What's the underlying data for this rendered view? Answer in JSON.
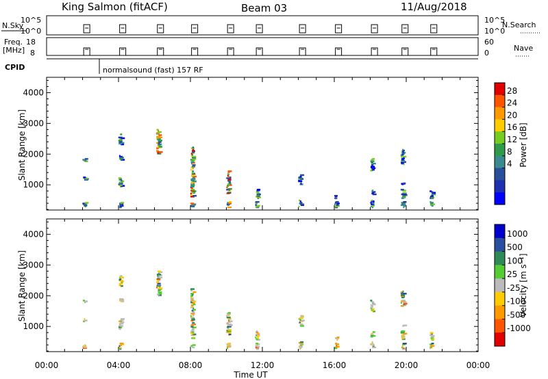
{
  "header": {
    "station": "King Salmon (fitACF)",
    "beam": "Beam 03",
    "date": "11/Aug/2018"
  },
  "strip_panels": {
    "nsky": {
      "label": "N.Sky",
      "left_ticks": [
        "10^5",
        "10^0"
      ],
      "right_ticks": [
        "10^5",
        "10^0"
      ],
      "right_label": "N.Search"
    },
    "freq": {
      "label_line1": "Freq.",
      "label_line2": "[MHz]",
      "left_ticks": [
        "18",
        "8"
      ],
      "right_ticks": [
        "60",
        "0"
      ],
      "right_label": "Nave"
    },
    "cpid": {
      "label": "CPID",
      "annotation": "normalsound (fast) 157 RF"
    }
  },
  "colorbars": {
    "power": {
      "label": "Power [dB]",
      "ticks": [
        "28",
        "24",
        "20",
        "16",
        "12",
        "8",
        "4"
      ],
      "colors": [
        "#e10000",
        "#ff5500",
        "#ff9900",
        "#ffcc00",
        "#77cc22",
        "#2e9b4a",
        "#3b8a8f",
        "#2a4f9a",
        "#1e2fb0",
        "#0000ff"
      ]
    },
    "velocity": {
      "label": "Velocity [m s⁻¹]",
      "ticks": [
        "1000",
        "500",
        "100",
        "25",
        "-25",
        "-100",
        "-500",
        "-1000"
      ],
      "colors": [
        "#0000cc",
        "#2a4fa0",
        "#2e8b57",
        "#55cc33",
        "#bbbbbb",
        "#ffcc00",
        "#ff9900",
        "#ff5500",
        "#e00000"
      ]
    }
  },
  "chart_data": [
    {
      "type": "heatmap",
      "title": "",
      "ylabel": "Slant Range [km]",
      "xlabel": "",
      "ylim": [
        180,
        4500
      ],
      "yticks": [
        "1000",
        "2000",
        "3000",
        "4000"
      ],
      "xlim": [
        0,
        24
      ],
      "xticks": [
        "00:00",
        "04:00",
        "08:00",
        "12:00",
        "16:00",
        "20:00",
        "00:00"
      ],
      "colorbar": "Power [dB]",
      "series": [
        {
          "time_h": 2.1,
          "range_km": [
            [
              280,
              420
            ],
            [
              1150,
              1250
            ],
            [
              1750,
              1850
            ]
          ],
          "level": "mixed"
        },
        {
          "time_h": 4.1,
          "range_km": [
            [
              250,
              450
            ],
            [
              900,
              1250
            ],
            [
              1800,
              1950
            ],
            [
              2300,
              2650
            ]
          ],
          "level": "mixed"
        },
        {
          "time_h": 6.2,
          "range_km": [
            [
              2000,
              2800
            ]
          ],
          "level": "strong"
        },
        {
          "time_h": 8.1,
          "range_km": [
            [
              250,
              400
            ],
            [
              600,
              1400
            ],
            [
              1400,
              2250
            ]
          ],
          "level": "strong"
        },
        {
          "time_h": 10.1,
          "range_km": [
            [
              250,
              450
            ],
            [
              700,
              1450
            ]
          ],
          "level": "strong"
        },
        {
          "time_h": 11.7,
          "range_km": [
            [
              250,
              450
            ],
            [
              550,
              850
            ]
          ],
          "level": "mixed"
        },
        {
          "time_h": 14.1,
          "range_km": [
            [
              250,
              500
            ],
            [
              1000,
              1350
            ]
          ],
          "level": "mixed"
        },
        {
          "time_h": 16.1,
          "range_km": [
            [
              250,
              450
            ],
            [
              550,
              650
            ]
          ],
          "level": "mixed"
        },
        {
          "time_h": 18.1,
          "range_km": [
            [
              250,
              500
            ],
            [
              650,
              850
            ],
            [
              1450,
              1850
            ]
          ],
          "level": "mixed"
        },
        {
          "time_h": 19.8,
          "range_km": [
            [
              250,
              450
            ],
            [
              550,
              850
            ],
            [
              1000,
              1050
            ],
            [
              1650,
              2150
            ]
          ],
          "level": "mixed"
        },
        {
          "time_h": 21.4,
          "range_km": [
            [
              250,
              450
            ],
            [
              550,
              800
            ]
          ],
          "level": "mixed"
        }
      ]
    },
    {
      "type": "heatmap",
      "title": "",
      "ylabel": "Slant Range [km]",
      "xlabel": "Time UT",
      "ylim": [
        180,
        4500
      ],
      "yticks": [
        "1000",
        "2000",
        "3000",
        "4000"
      ],
      "xlim": [
        0,
        24
      ],
      "xticks": [
        "00:00",
        "04:00",
        "08:00",
        "12:00",
        "16:00",
        "20:00",
        "00:00"
      ],
      "colorbar": "Velocity [m s⁻¹]",
      "series": [
        {
          "time_h": 2.1,
          "range_km": [
            [
              280,
              420
            ],
            [
              1150,
              1250
            ],
            [
              1750,
              1850
            ]
          ],
          "level": "mixed"
        },
        {
          "time_h": 4.1,
          "range_km": [
            [
              250,
              450
            ],
            [
              900,
              1250
            ],
            [
              1800,
              1950
            ],
            [
              2300,
              2650
            ]
          ],
          "level": "mixed"
        },
        {
          "time_h": 6.2,
          "range_km": [
            [
              2000,
              2800
            ]
          ],
          "level": "mixed"
        },
        {
          "time_h": 8.1,
          "range_km": [
            [
              250,
              400
            ],
            [
              600,
              1400
            ],
            [
              1400,
              2250
            ]
          ],
          "level": "mixed"
        },
        {
          "time_h": 10.1,
          "range_km": [
            [
              250,
              450
            ],
            [
              700,
              1450
            ]
          ],
          "level": "mixed"
        },
        {
          "time_h": 11.7,
          "range_km": [
            [
              250,
              450
            ],
            [
              550,
              850
            ]
          ],
          "level": "mixed"
        },
        {
          "time_h": 14.1,
          "range_km": [
            [
              250,
              500
            ],
            [
              1000,
              1350
            ]
          ],
          "level": "mixed"
        },
        {
          "time_h": 16.1,
          "range_km": [
            [
              250,
              450
            ],
            [
              550,
              650
            ]
          ],
          "level": "mixed"
        },
        {
          "time_h": 18.1,
          "range_km": [
            [
              250,
              500
            ],
            [
              650,
              850
            ],
            [
              1450,
              1850
            ]
          ],
          "level": "mixed"
        },
        {
          "time_h": 19.8,
          "range_km": [
            [
              250,
              450
            ],
            [
              550,
              850
            ],
            [
              1000,
              1050
            ],
            [
              1650,
              2150
            ]
          ],
          "level": "mixed"
        },
        {
          "time_h": 21.4,
          "range_km": [
            [
              250,
              450
            ],
            [
              550,
              800
            ]
          ],
          "level": "mixed"
        }
      ]
    }
  ],
  "scan_times_h": [
    2.1,
    4.1,
    6.2,
    8.1,
    10.1,
    11.7,
    14.1,
    16.1,
    18.1,
    19.8,
    21.4
  ]
}
